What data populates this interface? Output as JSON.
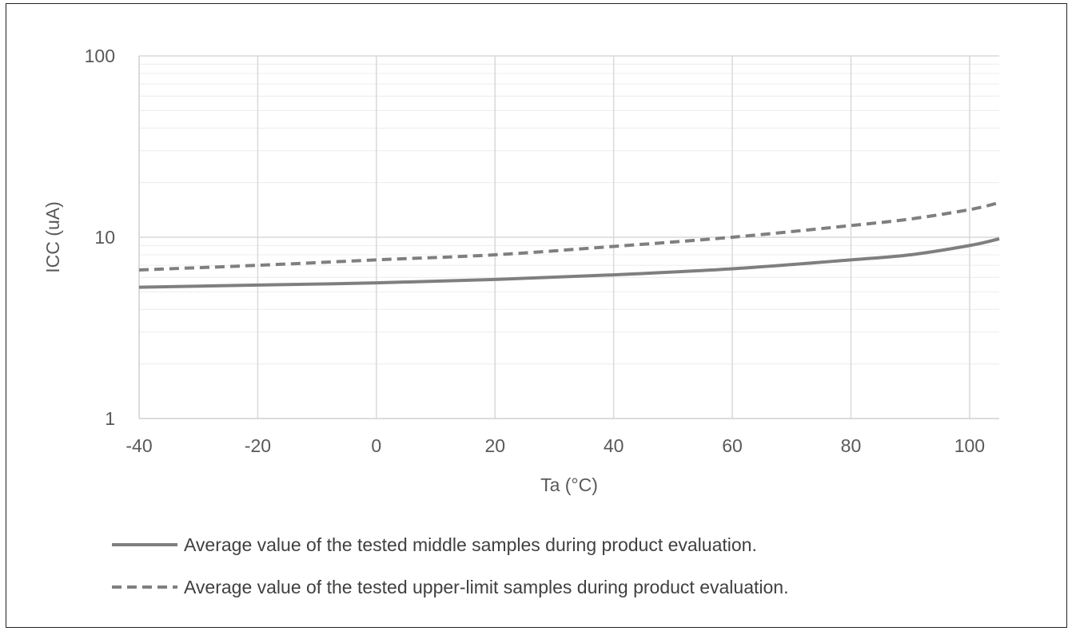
{
  "chart_data": {
    "type": "line",
    "xlabel": "Ta (°C)",
    "ylabel": "ICC (uA)",
    "xlim": [
      -40,
      105
    ],
    "ylim": [
      1,
      100
    ],
    "yscale": "log",
    "xticks": [
      "-40",
      "-20",
      "0",
      "20",
      "40",
      "60",
      "80",
      "100"
    ],
    "xtick_values": [
      -40,
      -20,
      0,
      20,
      40,
      60,
      80,
      100
    ],
    "yticks": [
      "1",
      "10",
      "100"
    ],
    "ytick_values": [
      1,
      10,
      100
    ],
    "grid": true,
    "legend_position": "bottom",
    "series": [
      {
        "name": "Average value of the tested middle samples during product evaluation.",
        "style": "solid",
        "color": "#7f7f7f",
        "x": [
          -40,
          -20,
          0,
          20,
          40,
          60,
          80,
          90,
          100,
          105
        ],
        "y": [
          5.3,
          5.45,
          5.6,
          5.85,
          6.2,
          6.7,
          7.5,
          8.0,
          9.0,
          9.8
        ]
      },
      {
        "name": "Average value of the tested upper-limit samples during product evaluation.",
        "style": "dashed",
        "color": "#7f7f7f",
        "x": [
          -40,
          -20,
          0,
          20,
          40,
          60,
          80,
          90,
          100,
          105
        ],
        "y": [
          6.6,
          7.0,
          7.5,
          8.0,
          8.9,
          10.0,
          11.6,
          12.6,
          14.2,
          15.5
        ]
      }
    ]
  }
}
